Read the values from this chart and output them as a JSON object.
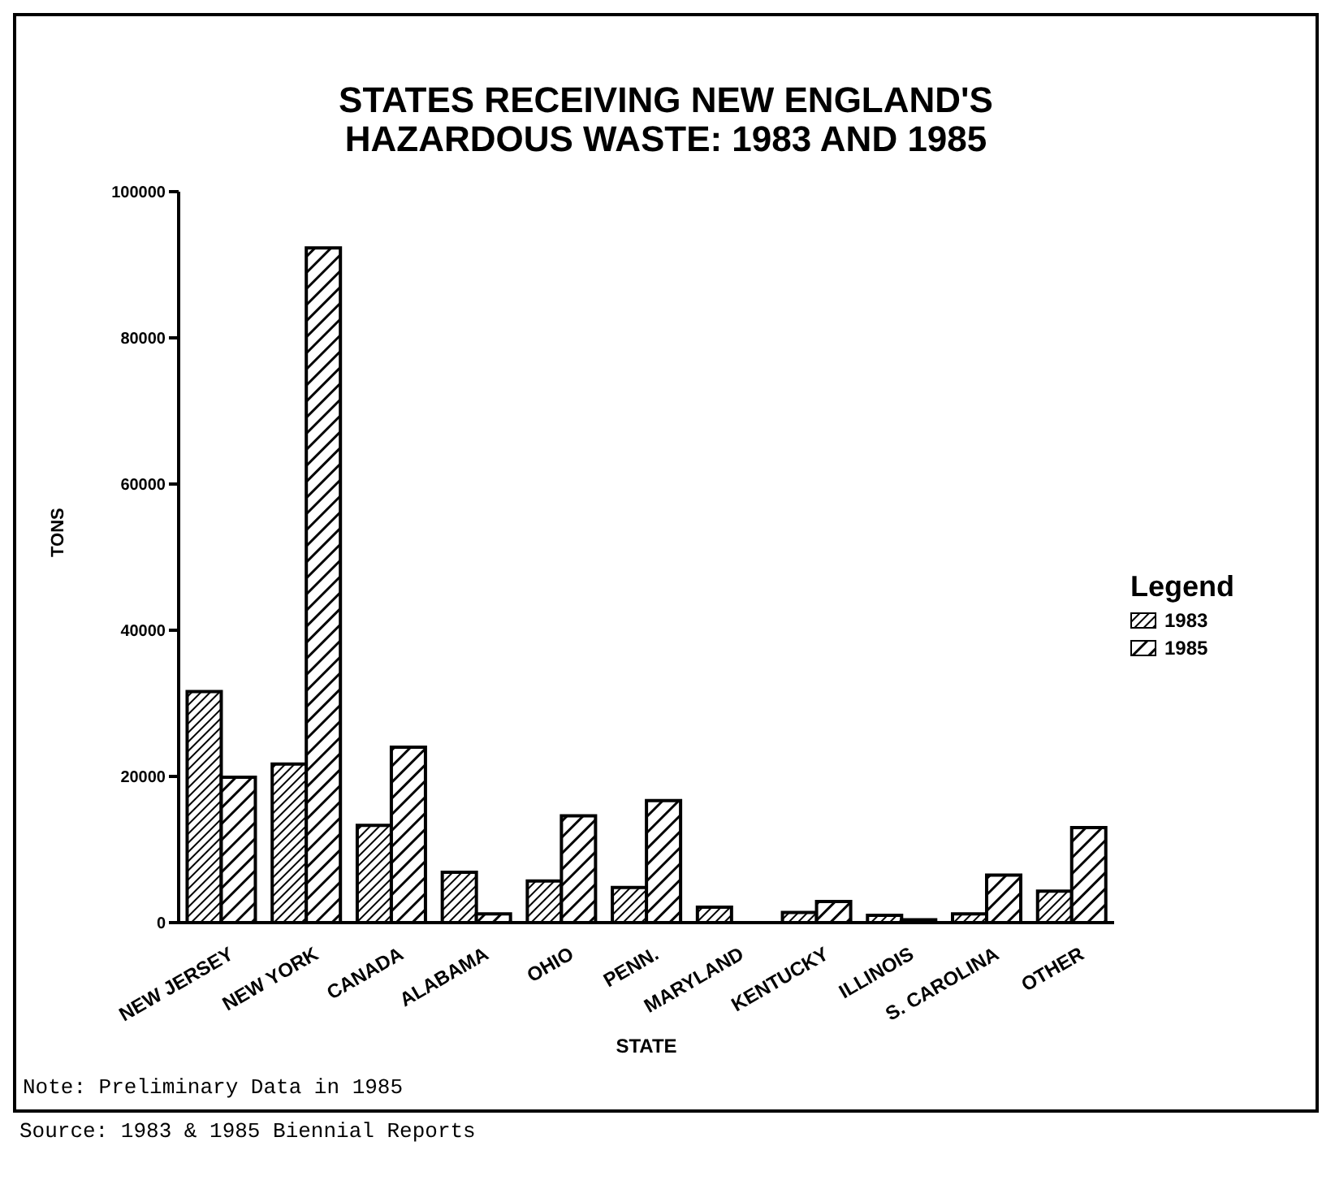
{
  "chart_data": {
    "type": "bar",
    "title": "STATES RECEIVING NEW ENGLAND'S\nHAZARDOUS WASTE: 1983 AND 1985",
    "xlabel": "STATE",
    "ylabel": "TONS",
    "legend_title": "Legend",
    "categories": [
      "NEW JERSEY",
      "NEW YORK",
      "CANADA",
      "ALABAMA",
      "OHIO",
      "PENN.",
      "MARYLAND",
      "KENTUCKY",
      "ILLINOIS",
      "S. CAROLINA",
      "OTHER"
    ],
    "series": [
      {
        "name": "1983",
        "color": "#000000",
        "values": [
          31600,
          21700,
          13300,
          6900,
          5700,
          4800,
          2100,
          1400,
          1000,
          1200,
          4300
        ]
      },
      {
        "name": "1985",
        "color": "#000000",
        "values": [
          19900,
          92300,
          24000,
          1200,
          14600,
          16700,
          null,
          2900,
          400,
          6500,
          13000
        ]
      }
    ],
    "ylim": [
      0,
      100000
    ],
    "yticks": [
      0,
      20000,
      40000,
      60000,
      80000,
      100000
    ],
    "grid": false,
    "legend": "right",
    "annotations": [
      "Note: Preliminary Data in 1985",
      "Source: 1983 & 1985 Biennial Reports"
    ]
  }
}
